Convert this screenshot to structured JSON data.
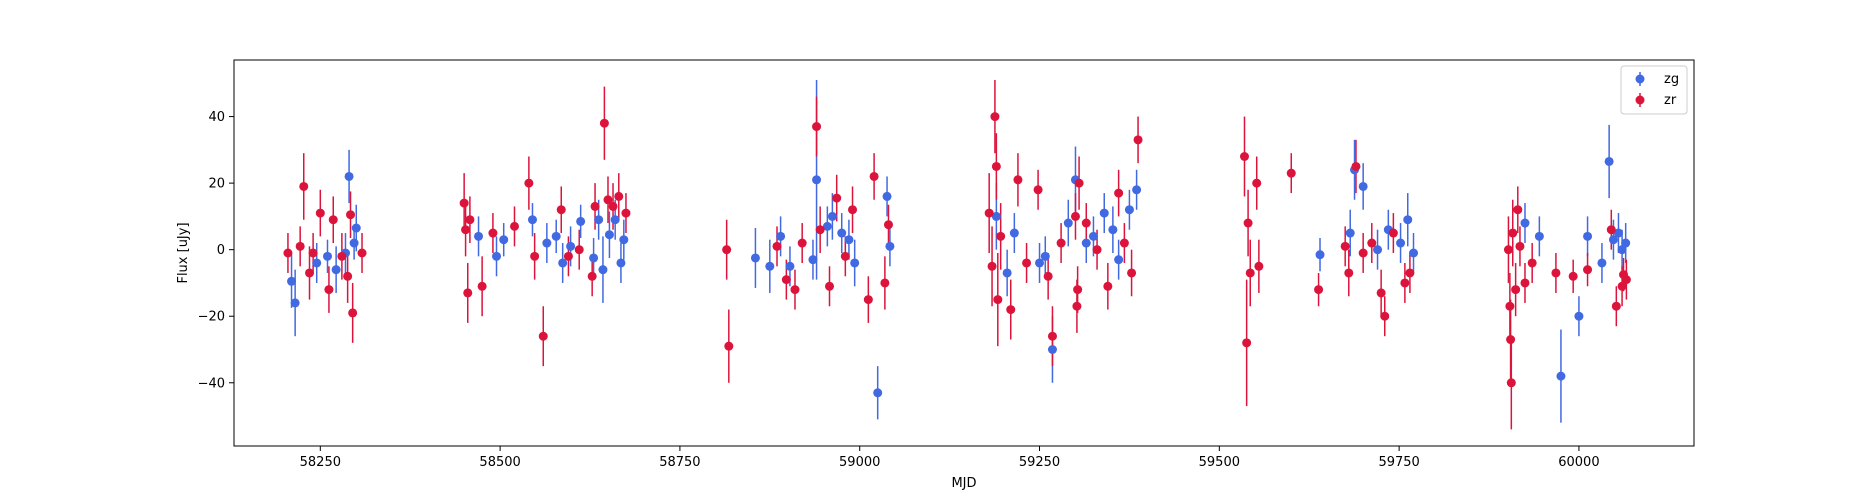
{
  "chart_data": {
    "type": "scatter",
    "title": "",
    "xlabel": "MJD",
    "ylabel": "Flux [uJy]",
    "xlim": [
      58130,
      60160
    ],
    "ylim": [
      -59,
      57
    ],
    "xticks": [
      58250,
      58500,
      58750,
      59000,
      59250,
      59500,
      59750,
      60000
    ],
    "yticks": [
      -40,
      -20,
      0,
      20,
      40
    ],
    "legend_position": "top-right",
    "grid": false,
    "series": [
      {
        "name": "zg",
        "color": "#4169e1",
        "marker": "circle",
        "points": [
          {
            "x": 58210,
            "y": -9.5,
            "err": 8
          },
          {
            "x": 58215,
            "y": -16,
            "err": 10
          },
          {
            "x": 58245,
            "y": -4,
            "err": 6
          },
          {
            "x": 58260,
            "y": -2,
            "err": 5
          },
          {
            "x": 58272,
            "y": -6,
            "err": 7
          },
          {
            "x": 58285,
            "y": -1,
            "err": 6
          },
          {
            "x": 58290,
            "y": 22,
            "err": 8
          },
          {
            "x": 58297,
            "y": 2,
            "err": 5
          },
          {
            "x": 58300,
            "y": 6.5,
            "err": 7
          },
          {
            "x": 58470,
            "y": 4,
            "err": 6
          },
          {
            "x": 58495,
            "y": -2,
            "err": 6
          },
          {
            "x": 58505,
            "y": 3,
            "err": 5
          },
          {
            "x": 58545,
            "y": 9,
            "err": 5
          },
          {
            "x": 58565,
            "y": 2,
            "err": 6
          },
          {
            "x": 58578,
            "y": 4,
            "err": 5
          },
          {
            "x": 58587,
            "y": -4,
            "err": 6
          },
          {
            "x": 58598,
            "y": 1,
            "err": 6
          },
          {
            "x": 58612,
            "y": 8.5,
            "err": 5
          },
          {
            "x": 58630,
            "y": -2.5,
            "err": 6
          },
          {
            "x": 58637,
            "y": 9,
            "err": 6
          },
          {
            "x": 58643,
            "y": -6,
            "err": 10
          },
          {
            "x": 58652,
            "y": 4.5,
            "err": 7
          },
          {
            "x": 58660,
            "y": 9,
            "err": 6
          },
          {
            "x": 58668,
            "y": -4,
            "err": 6
          },
          {
            "x": 58672,
            "y": 3,
            "err": 6
          },
          {
            "x": 58855,
            "y": -2.5,
            "err": 9
          },
          {
            "x": 58875,
            "y": -5,
            "err": 8
          },
          {
            "x": 58890,
            "y": 4,
            "err": 6
          },
          {
            "x": 58903,
            "y": -5,
            "err": 6
          },
          {
            "x": 58935,
            "y": -3,
            "err": 6
          },
          {
            "x": 58940,
            "y": 21,
            "err": 30
          },
          {
            "x": 58955,
            "y": 7,
            "err": 6
          },
          {
            "x": 58962,
            "y": 10,
            "err": 7
          },
          {
            "x": 58975,
            "y": 5,
            "err": 6
          },
          {
            "x": 58985,
            "y": 3,
            "err": 6
          },
          {
            "x": 58993,
            "y": -4,
            "err": 7
          },
          {
            "x": 59025,
            "y": -43,
            "err": 8
          },
          {
            "x": 59038,
            "y": 16,
            "err": 6
          },
          {
            "x": 59042,
            "y": 1,
            "err": 6
          },
          {
            "x": 59190,
            "y": 10,
            "err": 10
          },
          {
            "x": 59205,
            "y": -7,
            "err": 7
          },
          {
            "x": 59215,
            "y": 5,
            "err": 6
          },
          {
            "x": 59250,
            "y": -4,
            "err": 6
          },
          {
            "x": 59258,
            "y": -2,
            "err": 6
          },
          {
            "x": 59268,
            "y": -30,
            "err": 10
          },
          {
            "x": 59290,
            "y": 8,
            "err": 7
          },
          {
            "x": 59300,
            "y": 21,
            "err": 10
          },
          {
            "x": 59315,
            "y": 2,
            "err": 6
          },
          {
            "x": 59325,
            "y": 4,
            "err": 6
          },
          {
            "x": 59340,
            "y": 11,
            "err": 6
          },
          {
            "x": 59352,
            "y": 6,
            "err": 7
          },
          {
            "x": 59360,
            "y": -3,
            "err": 6
          },
          {
            "x": 59375,
            "y": 12,
            "err": 6
          },
          {
            "x": 59385,
            "y": 18,
            "err": 6
          },
          {
            "x": 59640,
            "y": -1.5,
            "err": 5
          },
          {
            "x": 59682,
            "y": 5,
            "err": 7
          },
          {
            "x": 59688,
            "y": 24,
            "err": 9
          },
          {
            "x": 59700,
            "y": 19,
            "err": 7
          },
          {
            "x": 59720,
            "y": 0,
            "err": 6
          },
          {
            "x": 59735,
            "y": 6,
            "err": 6
          },
          {
            "x": 59752,
            "y": 2,
            "err": 6
          },
          {
            "x": 59762,
            "y": 9,
            "err": 8
          },
          {
            "x": 59770,
            "y": -1,
            "err": 6
          },
          {
            "x": 59925,
            "y": 8,
            "err": 6
          },
          {
            "x": 59945,
            "y": 4,
            "err": 6
          },
          {
            "x": 59975,
            "y": -38,
            "err": 14
          },
          {
            "x": 60000,
            "y": -20,
            "err": 6
          },
          {
            "x": 60012,
            "y": 4,
            "err": 6
          },
          {
            "x": 60032,
            "y": -4,
            "err": 6
          },
          {
            "x": 60042,
            "y": 26.5,
            "err": 11
          },
          {
            "x": 60048,
            "y": 3,
            "err": 6
          },
          {
            "x": 60055,
            "y": 5,
            "err": 6
          },
          {
            "x": 60060,
            "y": 0,
            "err": 6
          },
          {
            "x": 60065,
            "y": 2,
            "err": 6
          }
        ]
      },
      {
        "name": "zr",
        "color": "#dc143c",
        "marker": "circle",
        "points": [
          {
            "x": 58205,
            "y": -1,
            "err": 6
          },
          {
            "x": 58222,
            "y": 1,
            "err": 6
          },
          {
            "x": 58227,
            "y": 19,
            "err": 10
          },
          {
            "x": 58235,
            "y": -7,
            "err": 8
          },
          {
            "x": 58240,
            "y": -1,
            "err": 6
          },
          {
            "x": 58250,
            "y": 11,
            "err": 7
          },
          {
            "x": 58262,
            "y": -12,
            "err": 7
          },
          {
            "x": 58268,
            "y": 9,
            "err": 7
          },
          {
            "x": 58280,
            "y": -2,
            "err": 7
          },
          {
            "x": 58288,
            "y": -8,
            "err": 8
          },
          {
            "x": 58292,
            "y": 10.5,
            "err": 7
          },
          {
            "x": 58295,
            "y": -19,
            "err": 9
          },
          {
            "x": 58308,
            "y": -1,
            "err": 6
          },
          {
            "x": 58450,
            "y": 14,
            "err": 9
          },
          {
            "x": 58452,
            "y": 6,
            "err": 8
          },
          {
            "x": 58455,
            "y": -13,
            "err": 9
          },
          {
            "x": 58458,
            "y": 9,
            "err": 7
          },
          {
            "x": 58475,
            "y": -11,
            "err": 9
          },
          {
            "x": 58490,
            "y": 5,
            "err": 6
          },
          {
            "x": 58520,
            "y": 7,
            "err": 6
          },
          {
            "x": 58540,
            "y": 20,
            "err": 8
          },
          {
            "x": 58548,
            "y": -2,
            "err": 7
          },
          {
            "x": 58560,
            "y": -26,
            "err": 9
          },
          {
            "x": 58585,
            "y": 12,
            "err": 7
          },
          {
            "x": 58595,
            "y": -2,
            "err": 6
          },
          {
            "x": 58610,
            "y": 0,
            "err": 6
          },
          {
            "x": 58628,
            "y": -8,
            "err": 6
          },
          {
            "x": 58632,
            "y": 13,
            "err": 7
          },
          {
            "x": 58645,
            "y": 38,
            "err": 11
          },
          {
            "x": 58650,
            "y": 15,
            "err": 7
          },
          {
            "x": 58657,
            "y": 13,
            "err": 7
          },
          {
            "x": 58665,
            "y": 16,
            "err": 7
          },
          {
            "x": 58675,
            "y": 11,
            "err": 6
          },
          {
            "x": 58815,
            "y": 0,
            "err": 9
          },
          {
            "x": 58818,
            "y": -29,
            "err": 11
          },
          {
            "x": 58885,
            "y": 1,
            "err": 6
          },
          {
            "x": 58898,
            "y": -9,
            "err": 6
          },
          {
            "x": 58910,
            "y": -12,
            "err": 6
          },
          {
            "x": 58920,
            "y": 2,
            "err": 6
          },
          {
            "x": 58940,
            "y": 37,
            "err": 9
          },
          {
            "x": 58945,
            "y": 6,
            "err": 7
          },
          {
            "x": 58958,
            "y": -11,
            "err": 6
          },
          {
            "x": 58968,
            "y": 15.5,
            "err": 7
          },
          {
            "x": 58980,
            "y": -2,
            "err": 6
          },
          {
            "x": 58990,
            "y": 12,
            "err": 7
          },
          {
            "x": 59012,
            "y": -15,
            "err": 7
          },
          {
            "x": 59020,
            "y": 22,
            "err": 7
          },
          {
            "x": 59035,
            "y": -10,
            "err": 8
          },
          {
            "x": 59040,
            "y": 7.5,
            "err": 6
          },
          {
            "x": 59180,
            "y": 11,
            "err": 12
          },
          {
            "x": 59184,
            "y": -5,
            "err": 12
          },
          {
            "x": 59188,
            "y": 40,
            "err": 11
          },
          {
            "x": 59190,
            "y": 25,
            "err": 10
          },
          {
            "x": 59192,
            "y": -15,
            "err": 14
          },
          {
            "x": 59196,
            "y": 4,
            "err": 10
          },
          {
            "x": 59210,
            "y": -18,
            "err": 9
          },
          {
            "x": 59220,
            "y": 21,
            "err": 8
          },
          {
            "x": 59232,
            "y": -4,
            "err": 6
          },
          {
            "x": 59248,
            "y": 18,
            "err": 6
          },
          {
            "x": 59262,
            "y": -8,
            "err": 7
          },
          {
            "x": 59268,
            "y": -26,
            "err": 9
          },
          {
            "x": 59280,
            "y": 2,
            "err": 6
          },
          {
            "x": 59300,
            "y": 10,
            "err": 7
          },
          {
            "x": 59305,
            "y": 20,
            "err": 8
          },
          {
            "x": 59302,
            "y": -17,
            "err": 8
          },
          {
            "x": 59303,
            "y": -12,
            "err": 7
          },
          {
            "x": 59315,
            "y": 8,
            "err": 6
          },
          {
            "x": 59330,
            "y": 0,
            "err": 6
          },
          {
            "x": 59345,
            "y": -11,
            "err": 7
          },
          {
            "x": 59360,
            "y": 17,
            "err": 7
          },
          {
            "x": 59368,
            "y": 2,
            "err": 6
          },
          {
            "x": 59378,
            "y": -7,
            "err": 7
          },
          {
            "x": 59387,
            "y": 33,
            "err": 7
          },
          {
            "x": 59535,
            "y": 28,
            "err": 12
          },
          {
            "x": 59538,
            "y": -28,
            "err": 19
          },
          {
            "x": 59540,
            "y": 8,
            "err": 10
          },
          {
            "x": 59543,
            "y": -7,
            "err": 10
          },
          {
            "x": 59552,
            "y": 20,
            "err": 8
          },
          {
            "x": 59555,
            "y": -5,
            "err": 8
          },
          {
            "x": 59600,
            "y": 23,
            "err": 6
          },
          {
            "x": 59638,
            "y": -12,
            "err": 5
          },
          {
            "x": 59675,
            "y": 1,
            "err": 6
          },
          {
            "x": 59680,
            "y": -7,
            "err": 7
          },
          {
            "x": 59690,
            "y": 25,
            "err": 8
          },
          {
            "x": 59700,
            "y": -1,
            "err": 6
          },
          {
            "x": 59712,
            "y": 2,
            "err": 6
          },
          {
            "x": 59725,
            "y": -13,
            "err": 7
          },
          {
            "x": 59730,
            "y": -20,
            "err": 6
          },
          {
            "x": 59742,
            "y": 5,
            "err": 6
          },
          {
            "x": 59758,
            "y": -10,
            "err": 6
          },
          {
            "x": 59765,
            "y": -7,
            "err": 6
          },
          {
            "x": 59902,
            "y": 0,
            "err": 10
          },
          {
            "x": 59904,
            "y": -17,
            "err": 10
          },
          {
            "x": 59905,
            "y": -27,
            "err": 12
          },
          {
            "x": 59906,
            "y": -40,
            "err": 14
          },
          {
            "x": 59908,
            "y": 5,
            "err": 10
          },
          {
            "x": 59912,
            "y": -12,
            "err": 8
          },
          {
            "x": 59915,
            "y": 12,
            "err": 7
          },
          {
            "x": 59918,
            "y": 1,
            "err": 6
          },
          {
            "x": 59925,
            "y": -10,
            "err": 6
          },
          {
            "x": 59935,
            "y": -4,
            "err": 6
          },
          {
            "x": 59968,
            "y": -7,
            "err": 6
          },
          {
            "x": 59992,
            "y": -8,
            "err": 5
          },
          {
            "x": 60012,
            "y": -6,
            "err": 5
          },
          {
            "x": 60045,
            "y": 6,
            "err": 6
          },
          {
            "x": 60052,
            "y": -17,
            "err": 6
          },
          {
            "x": 60060,
            "y": -11,
            "err": 6
          },
          {
            "x": 60062,
            "y": -7.5,
            "err": 5
          },
          {
            "x": 60066,
            "y": -9,
            "err": 6
          }
        ]
      }
    ]
  }
}
